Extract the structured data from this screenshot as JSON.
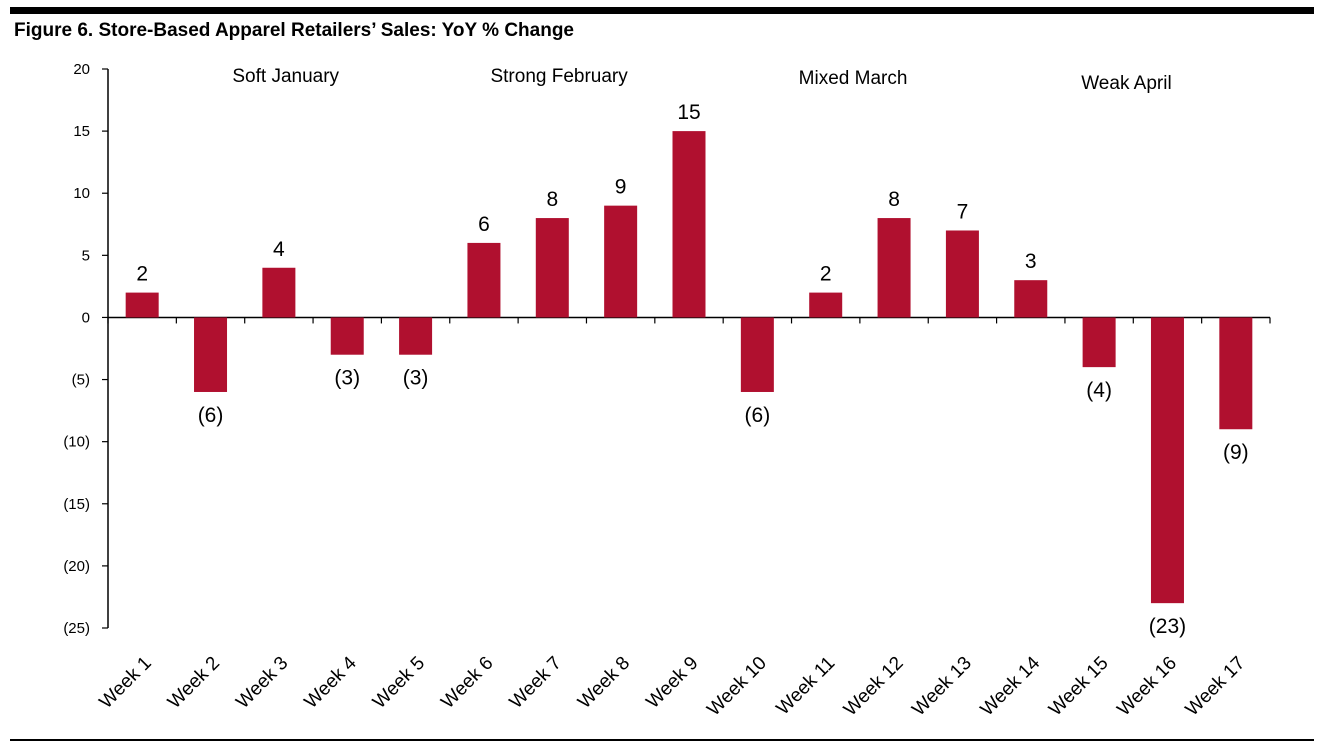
{
  "figure": {
    "title": "Figure 6. Store-Based Apparel Retailers’ Sales: YoY % Change"
  },
  "chart_data": {
    "type": "bar",
    "title": "Figure 6. Store-Based Apparel Retailers’ Sales: YoY % Change",
    "categories": [
      "Week 1",
      "Week 2",
      "Week 3",
      "Week 4",
      "Week 5",
      "Week 6",
      "Week 7",
      "Week 8",
      "Week 9",
      "Week 10",
      "Week 11",
      "Week 12",
      "Week 13",
      "Week 14",
      "Week 15",
      "Week 16",
      "Week 17"
    ],
    "values": [
      2,
      -6,
      4,
      -3,
      -3,
      6,
      8,
      9,
      15,
      -6,
      2,
      8,
      7,
      3,
      -4,
      -23,
      -9
    ],
    "data_labels": [
      "2",
      "(6)",
      "4",
      "(3)",
      "(3)",
      "6",
      "8",
      "9",
      "15",
      "(6)",
      "2",
      "8",
      "7",
      "3",
      "(4)",
      "(23)",
      "(9)"
    ],
    "ylim": [
      -25,
      20
    ],
    "yticks": [
      20,
      15,
      10,
      5,
      0,
      -5,
      -10,
      -15,
      -20,
      -25
    ],
    "ytick_labels": [
      "20",
      "15",
      "10",
      "5",
      "0",
      "(5)",
      "(10)",
      "(15)",
      "(20)",
      "(25)"
    ],
    "xlabel": "",
    "ylabel": "",
    "grid": false,
    "bar_color": "#b0102f",
    "annotations": [
      {
        "text": "Soft January",
        "at_category": 2.1
      },
      {
        "text": "Strong February",
        "at_category": 6.1
      },
      {
        "text": "Mixed March",
        "at_category": 10.4
      },
      {
        "text": "Weak April",
        "at_category": 14.4
      }
    ]
  }
}
